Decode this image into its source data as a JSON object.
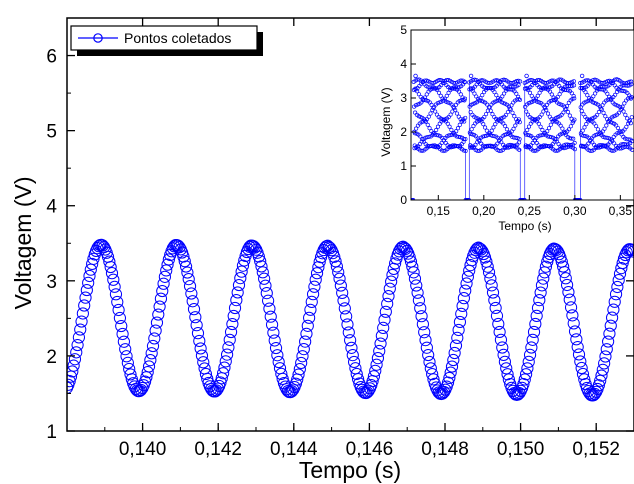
{
  "chart_data": [
    {
      "type": "scatter",
      "xlabel": "Tempo (s)",
      "ylabel": "Voltagem (V)",
      "xlim": [
        0.138,
        0.153
      ],
      "ylim": [
        1.0,
        6.5
      ],
      "xticks": [
        "0,140",
        "0,142",
        "0,144",
        "0,146",
        "0,148",
        "0,150",
        "0,152"
      ],
      "xtick_values": [
        0.14,
        0.142,
        0.144,
        0.146,
        0.148,
        0.15,
        0.152
      ],
      "yticks": [
        "1",
        "2",
        "3",
        "4",
        "5",
        "6"
      ],
      "ytick_values": [
        1,
        2,
        3,
        4,
        5,
        6
      ],
      "legend": {
        "position": "top-left",
        "label": "Pontos coletados"
      },
      "series": [
        {
          "name": "Pontos coletados",
          "color": "#0000ff",
          "marker": "open-circle",
          "period": 0.002,
          "min": 1.5,
          "max": 3.45,
          "peaks_x": [
            0.1389,
            0.1409,
            0.1429,
            0.1449,
            0.1469,
            0.1489,
            0.1509,
            0.1529
          ],
          "troughs_x": [
            0.1399,
            0.1419,
            0.1439,
            0.1459,
            0.1479,
            0.1499,
            0.1519
          ]
        }
      ]
    },
    {
      "type": "scatter",
      "inset": true,
      "xlabel": "Tempo (s)",
      "ylabel": "Voltagem (V)",
      "xlim": [
        0.12,
        0.365
      ],
      "ylim": [
        0,
        5
      ],
      "xticks": [
        "0,15",
        "0,20",
        "0,25",
        "0,30",
        "0,35"
      ],
      "xtick_values": [
        0.15,
        0.2,
        0.25,
        0.3,
        0.35
      ],
      "yticks": [
        "0",
        "1",
        "2",
        "3",
        "4",
        "5"
      ],
      "ytick_values": [
        0,
        1,
        2,
        3,
        4,
        5
      ],
      "series": [
        {
          "name": "Pontos coletados",
          "color": "#0000ff",
          "marker": "open-circle",
          "bursts": [
            [
              0.123,
              0.18
            ],
            [
              0.184,
              0.24
            ],
            [
              0.245,
              0.3
            ],
            [
              0.306,
              0.363
            ]
          ],
          "burst_min": 1.5,
          "burst_max": 3.5,
          "gap_value": 0.0
        }
      ]
    }
  ]
}
